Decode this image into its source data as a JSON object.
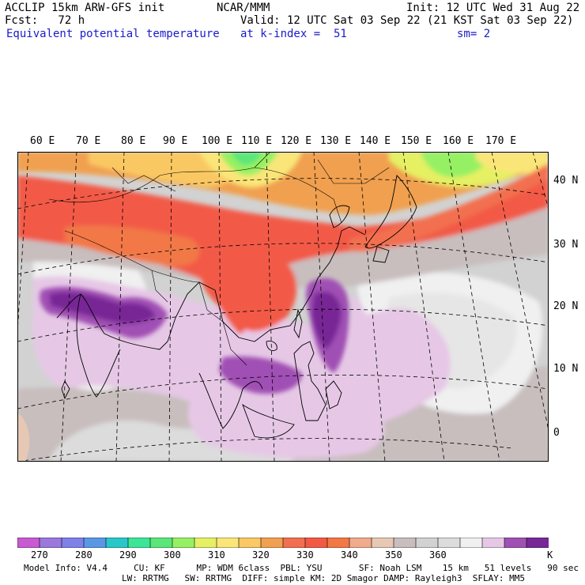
{
  "header": {
    "model_line": "ACCLIP 15km ARW-GFS init",
    "center": "NCAR/MMM",
    "init": "Init: 12 UTC Wed 31 Aug 22",
    "fcst": "Fcst:   72 h",
    "valid": "Valid: 12 UTC Sat 03 Sep 22 (21 KST Sat 03 Sep 22)",
    "field": "Equivalent potential temperature",
    "level": "at k-index =  51",
    "smooth": "sm= 2"
  },
  "map": {
    "lon_labels": [
      "60 E",
      "70 E",
      "80 E",
      "90 E",
      "100 E",
      "110 E",
      "120 E",
      "130 E",
      "140 E",
      "150 E",
      "160 E",
      "170 E"
    ],
    "lat_labels": [
      "40 N",
      "30 N",
      "20 N",
      "10 N",
      "0"
    ]
  },
  "colorbar": {
    "colors": [
      "#c85ad2",
      "#9a78dc",
      "#7f80e8",
      "#5a98e6",
      "#28c8c8",
      "#3ce696",
      "#5ae678",
      "#96f064",
      "#e6f064",
      "#fae678",
      "#fac864",
      "#f0a050",
      "#f27050",
      "#f25a46",
      "#f27846",
      "#f0aa8c",
      "#e6c8b4",
      "#c8bebe",
      "#d2d2d2",
      "#dcdcdc",
      "#f0f0f0",
      "#e6c8e6",
      "#a050b4",
      "#782896"
    ],
    "tick_labels": [
      "270",
      "280",
      "290",
      "300",
      "310",
      "320",
      "330",
      "340",
      "350",
      "360",
      "K"
    ]
  },
  "footer": {
    "line1": "Model Info: V4.4     CU: KF      MP: WDM 6class  PBL: YSU       SF: Noah LSM    15 km   51 levels   90 sec",
    "line2": "LW: RRTMG   SW: RRTMG  DIFF: simple KM: 2D Smagor DAMP: Rayleigh3  SFLAY: MM5"
  }
}
